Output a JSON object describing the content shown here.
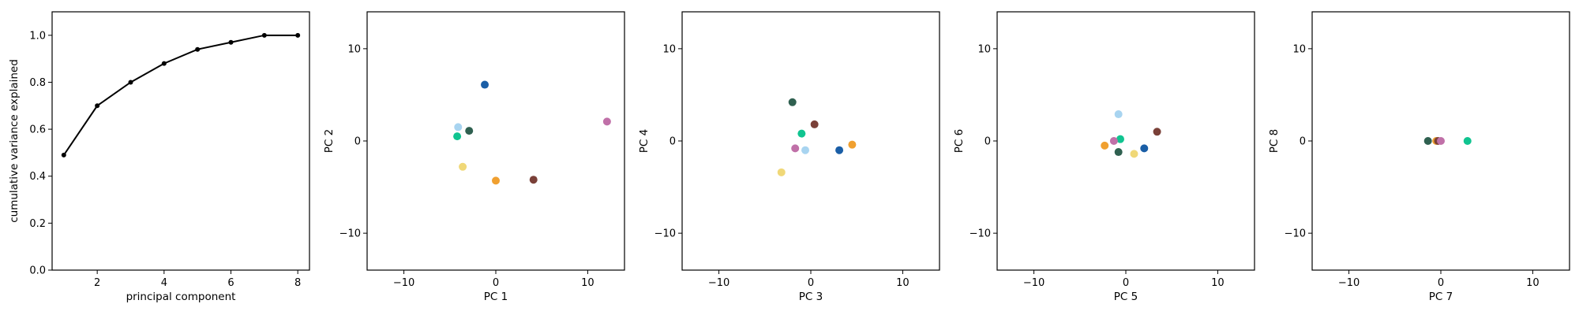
{
  "chart_data": [
    {
      "type": "line",
      "xlabel": "principal component",
      "ylabel": "cumulative variance explained",
      "xlim": [
        0.65,
        8.35
      ],
      "ylim": [
        0,
        1.1
      ],
      "x_ticks": [
        2,
        4,
        6,
        8
      ],
      "y_ticks": [
        0.0,
        0.2,
        0.4,
        0.6,
        0.8,
        1.0
      ],
      "y_tick_labels": [
        "0.0",
        "0.2",
        "0.4",
        "0.6",
        "0.8",
        "1.0"
      ],
      "grid": false,
      "line_color": "#000000",
      "x": [
        1,
        2,
        3,
        4,
        5,
        6,
        7,
        8
      ],
      "y": [
        0.49,
        0.7,
        0.8,
        0.88,
        0.94,
        0.97,
        1.0,
        1.0
      ]
    },
    {
      "type": "scatter",
      "xlabel": "PC 1",
      "ylabel": "PC 2",
      "xlim": [
        -14,
        14
      ],
      "ylim": [
        -14,
        14
      ],
      "x_ticks": [
        -10,
        0,
        10
      ],
      "y_ticks": [
        -10,
        0,
        10
      ],
      "grid": false,
      "points": [
        {
          "x": -1.2,
          "y": 6.1,
          "color": "#1a5ea6"
        },
        {
          "x": -4.1,
          "y": 1.5,
          "color": "#a8d4f0"
        },
        {
          "x": -4.2,
          "y": 0.5,
          "color": "#10c490"
        },
        {
          "x": -2.9,
          "y": 1.1,
          "color": "#2f6050"
        },
        {
          "x": -3.6,
          "y": -2.8,
          "color": "#f0d878"
        },
        {
          "x": 0.0,
          "y": -4.3,
          "color": "#f0a030"
        },
        {
          "x": 4.1,
          "y": -4.2,
          "color": "#7a4038"
        },
        {
          "x": 12.1,
          "y": 2.1,
          "color": "#c070a8"
        }
      ]
    },
    {
      "type": "scatter",
      "xlabel": "PC 3",
      "ylabel": "PC 4",
      "xlim": [
        -14,
        14
      ],
      "ylim": [
        -14,
        14
      ],
      "x_ticks": [
        -10,
        0,
        10
      ],
      "y_ticks": [
        -10,
        0,
        10
      ],
      "grid": false,
      "points": [
        {
          "x": -2.0,
          "y": 4.2,
          "color": "#2f6050"
        },
        {
          "x": 0.4,
          "y": 1.8,
          "color": "#7a4038"
        },
        {
          "x": -1.0,
          "y": 0.8,
          "color": "#10c490"
        },
        {
          "x": -1.7,
          "y": -0.8,
          "color": "#c070a8"
        },
        {
          "x": -0.6,
          "y": -1.0,
          "color": "#a8d4f0"
        },
        {
          "x": 3.1,
          "y": -1.0,
          "color": "#1a5ea6"
        },
        {
          "x": 4.5,
          "y": -0.4,
          "color": "#f0a030"
        },
        {
          "x": -3.2,
          "y": -3.4,
          "color": "#f0d878"
        }
      ]
    },
    {
      "type": "scatter",
      "xlabel": "PC 5",
      "ylabel": "PC 6",
      "xlim": [
        -14,
        14
      ],
      "ylim": [
        -14,
        14
      ],
      "x_ticks": [
        -10,
        0,
        10
      ],
      "y_ticks": [
        -10,
        0,
        10
      ],
      "grid": false,
      "points": [
        {
          "x": -0.8,
          "y": 2.9,
          "color": "#a8d4f0"
        },
        {
          "x": 3.4,
          "y": 1.0,
          "color": "#7a4038"
        },
        {
          "x": -0.6,
          "y": 0.2,
          "color": "#10c490"
        },
        {
          "x": -1.3,
          "y": 0.0,
          "color": "#c070a8"
        },
        {
          "x": -2.3,
          "y": -0.5,
          "color": "#f0a030"
        },
        {
          "x": -0.8,
          "y": -1.2,
          "color": "#2f6050"
        },
        {
          "x": 2.0,
          "y": -0.8,
          "color": "#1a5ea6"
        },
        {
          "x": 0.9,
          "y": -1.4,
          "color": "#f0d878"
        }
      ]
    },
    {
      "type": "scatter",
      "xlabel": "PC 7",
      "ylabel": "PC 8",
      "xlim": [
        -14,
        14
      ],
      "ylim": [
        -14,
        14
      ],
      "x_ticks": [
        -10,
        0,
        10
      ],
      "y_ticks": [
        -10,
        0,
        10
      ],
      "grid": false,
      "points": [
        {
          "x": -1.4,
          "y": 0.0,
          "color": "#2f6050"
        },
        {
          "x": -0.5,
          "y": 0.0,
          "color": "#f0a030"
        },
        {
          "x": -0.3,
          "y": 0.0,
          "color": "#7a4038"
        },
        {
          "x": 0.0,
          "y": 0.0,
          "color": "#c070a8"
        },
        {
          "x": 2.9,
          "y": 0.0,
          "color": "#10c490"
        }
      ]
    }
  ]
}
